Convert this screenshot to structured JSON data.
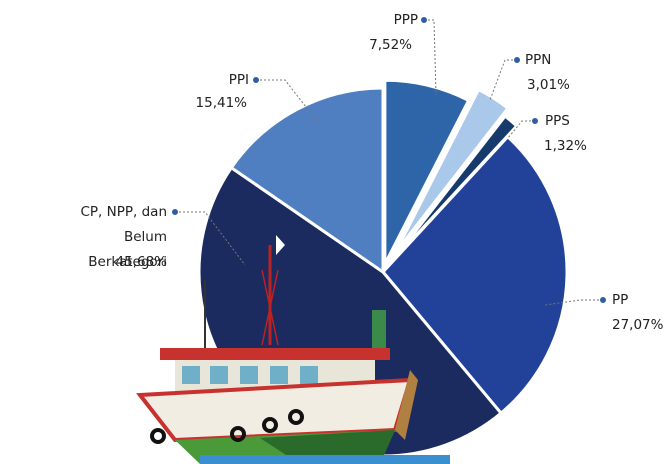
{
  "chart_data": {
    "type": "pie",
    "categories": [
      "PPP",
      "PPN",
      "PPS",
      "PP",
      "CP, NPP, dan Belum Berkategori",
      "PPI"
    ],
    "values": [
      7.52,
      3.01,
      1.32,
      27.07,
      45.68,
      15.41
    ],
    "value_labels": [
      "7,52%",
      "3,01%",
      "1,32%",
      "27,07%",
      "45,68%",
      "15,41%"
    ],
    "colors": [
      "#2e64a8",
      "#a9c8ea",
      "#163a6b",
      "#22429a",
      "#1b2b60",
      "#4f7fc0"
    ]
  }
}
